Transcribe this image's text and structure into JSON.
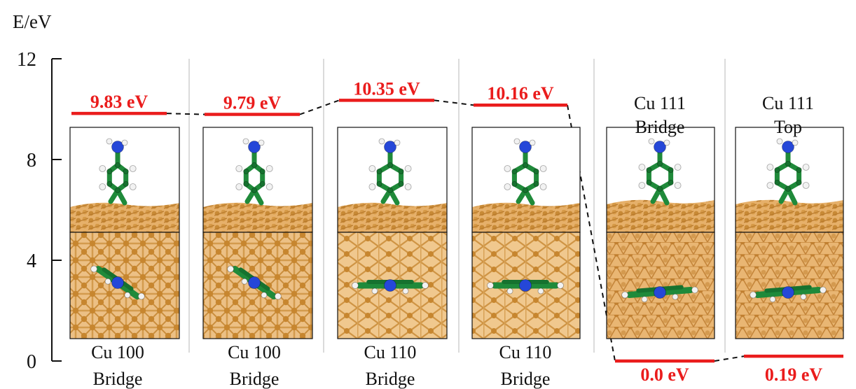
{
  "chart_data": {
    "type": "energy-level diagram",
    "ylabel": "E/eV",
    "ylim": [
      0,
      12
    ],
    "yticks": [
      "0",
      "4",
      "8",
      "12"
    ],
    "configurations": [
      {
        "label_line1": "Cu 100",
        "label_line2": "Bridge",
        "energy": 9.83,
        "energy_label": "9.83 eV"
      },
      {
        "label_line1": "Cu 100",
        "label_line2": "Bridge",
        "energy": 9.79,
        "energy_label": "9.79 eV"
      },
      {
        "label_line1": "Cu 110",
        "label_line2": "Bridge",
        "energy": 10.35,
        "energy_label": "10.35 eV"
      },
      {
        "label_line1": "Cu 110",
        "label_line2": "Bridge",
        "energy": 10.16,
        "energy_label": "10.16 eV"
      },
      {
        "label_line1": "Cu 111",
        "label_line2": "Bridge",
        "energy": 0.0,
        "energy_label": "0.0 eV"
      },
      {
        "label_line1": "Cu 111",
        "label_line2": "Top",
        "energy": 0.19,
        "energy_label": "0.19 eV"
      }
    ]
  },
  "colors": {
    "level": "#ea1c1c",
    "copper": "#d99a43",
    "carbon": "#1f8a3a",
    "nitrogen": "#2547d8",
    "hydrogen": "#f2f2f2"
  }
}
